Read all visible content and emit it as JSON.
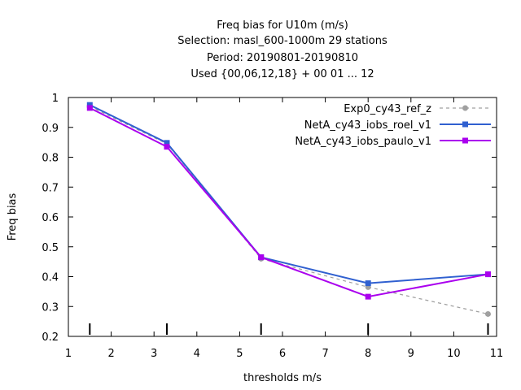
{
  "chart_data": {
    "type": "line",
    "title_lines": [
      "Freq bias  for U10m (m/s)",
      "Selection: masl_600-1000m     29 stations",
      "Period: 20190801-20190810",
      "Used {00,06,12,18} + 00 01 ... 12"
    ],
    "xlabel": "thresholds m/s",
    "ylabel": "Freq bias",
    "xlim": [
      1,
      11
    ],
    "ylim": [
      0.2,
      1.0
    ],
    "xticks": [
      1,
      2,
      3,
      4,
      5,
      6,
      7,
      8,
      9,
      10,
      11
    ],
    "yticks": [
      0.2,
      0.3,
      0.4,
      0.5,
      0.6,
      0.7,
      0.8,
      0.9,
      1
    ],
    "threshold_markers": [
      1.5,
      3.3,
      5.5,
      8,
      10.8
    ],
    "grid": false,
    "legend_position": "top-right",
    "series": [
      {
        "name": "Exp0_cy43_ref_z",
        "color": "#a0a0a0",
        "dash": true,
        "marker": "circle",
        "x": [
          1.5,
          3.3,
          5.5,
          8,
          10.8
        ],
        "y": [
          0.97,
          0.845,
          0.46,
          0.365,
          0.275
        ]
      },
      {
        "name": "NetA_cy43_iobs_roel_v1",
        "color": "#3060d0",
        "dash": false,
        "marker": "square",
        "x": [
          1.5,
          3.3,
          5.5,
          8,
          10.8
        ],
        "y": [
          0.975,
          0.848,
          0.465,
          0.378,
          0.408
        ]
      },
      {
        "name": "NetA_cy43_iobs_paulo_v1",
        "color": "#aa00ee",
        "dash": false,
        "marker": "square",
        "x": [
          1.5,
          3.3,
          5.5,
          8,
          10.8
        ],
        "y": [
          0.965,
          0.835,
          0.465,
          0.333,
          0.408
        ]
      }
    ]
  }
}
